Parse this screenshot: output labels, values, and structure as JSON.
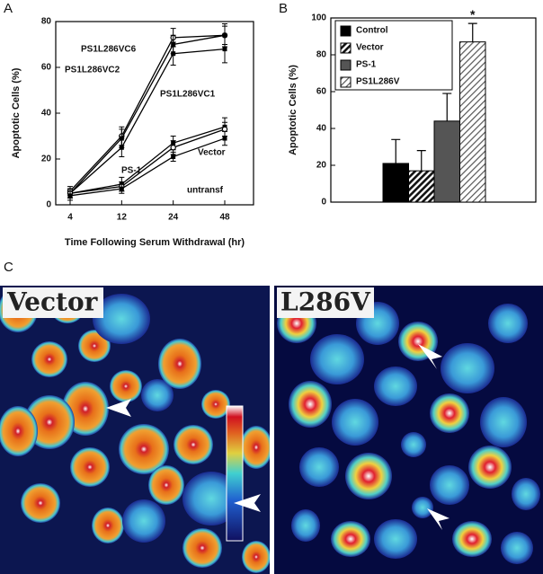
{
  "panel_labels": [
    "A",
    "B",
    "C"
  ],
  "image_labels": [
    "Vector",
    "L286V"
  ],
  "chart_data": [
    {
      "type": "line",
      "xlabel": "Time Following Serum Withdrawal (hr)",
      "ylabel": "Apoptotic Cells (%)",
      "categories": [
        "4",
        "12",
        "24",
        "48"
      ],
      "ylim": [
        0,
        80
      ],
      "yticks": [
        0,
        20,
        40,
        60,
        80
      ],
      "series": [
        {
          "name": "PS1L286VC6",
          "color": "#000000",
          "marker": "circle",
          "values": [
            6,
            30,
            73,
            74
          ],
          "errors": [
            2,
            4,
            4,
            5
          ]
        },
        {
          "name": "PS1L286VC2",
          "color": "#000000",
          "marker": "square",
          "values": [
            5,
            29,
            70,
            74
          ],
          "errors": [
            2,
            4,
            4,
            4
          ]
        },
        {
          "name": "PS1L286VC1",
          "color": "#000000",
          "marker": "square",
          "values": [
            5,
            25,
            66,
            68
          ],
          "errors": [
            2,
            4,
            5,
            6
          ]
        },
        {
          "name": "Vector",
          "color": "#000000",
          "marker": "square",
          "values": [
            5,
            9,
            27,
            34
          ],
          "errors": [
            2,
            3,
            3,
            4
          ]
        },
        {
          "name": "PS-1",
          "color": "#000000",
          "marker": "circle",
          "values": [
            5,
            8,
            25,
            33
          ],
          "errors": [
            2,
            2,
            3,
            3
          ]
        },
        {
          "name": "untransf",
          "color": "#000000",
          "marker": "square",
          "values": [
            4,
            7,
            21,
            29
          ],
          "errors": [
            2,
            2,
            2,
            3
          ]
        }
      ]
    },
    {
      "type": "bar",
      "ylabel": "Apoptotic Cells (%)",
      "ylim": [
        0,
        100
      ],
      "yticks": [
        0,
        20,
        40,
        60,
        80,
        100
      ],
      "annotation": "*",
      "series": [
        {
          "name": "Control",
          "color": "#000000",
          "hatch": false,
          "values": [
            21
          ],
          "errors": [
            13
          ]
        },
        {
          "name": "Vector",
          "color": "#222222",
          "hatch": true,
          "values": [
            17
          ],
          "errors": [
            11
          ]
        },
        {
          "name": "PS-1",
          "color": "#555555",
          "hatch": false,
          "values": [
            44
          ],
          "errors": [
            15
          ]
        },
        {
          "name": "PS1L286V",
          "color": "#aaaaaa",
          "hatch": true,
          "values": [
            87
          ],
          "errors": [
            10
          ]
        }
      ]
    }
  ]
}
